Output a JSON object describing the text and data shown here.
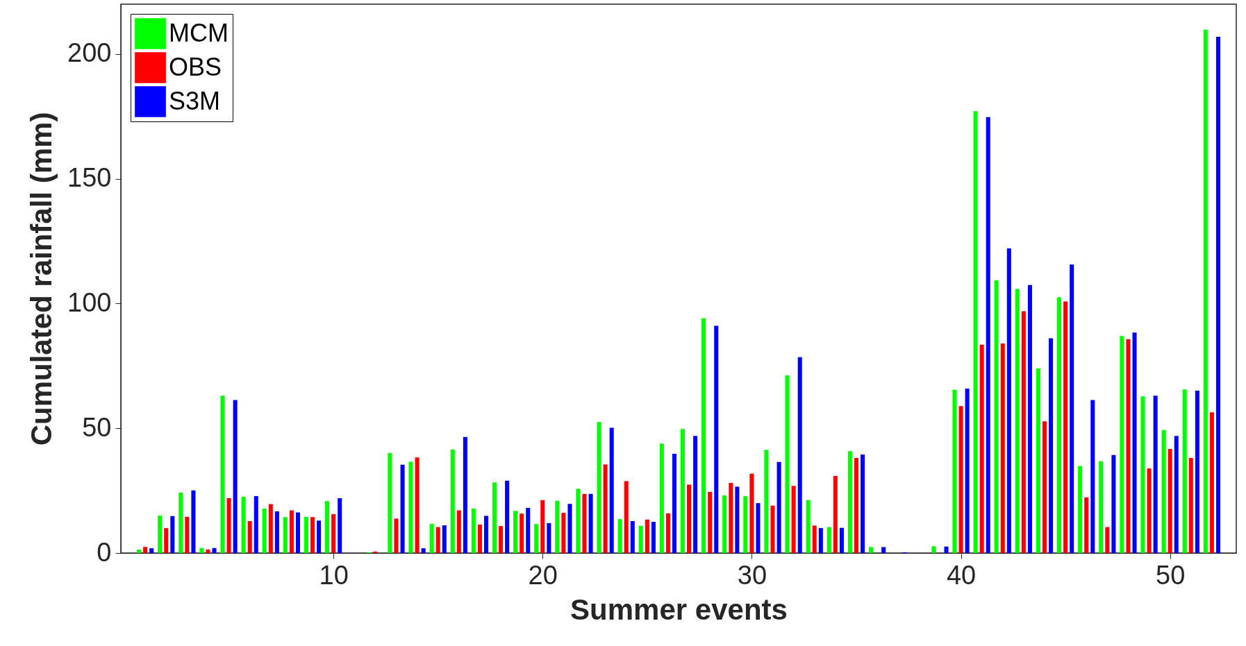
{
  "chart_data": {
    "type": "bar",
    "xlabel": "Summer events",
    "ylabel": "Cumulated rainfall (mm)",
    "x": [
      1,
      2,
      3,
      4,
      5,
      6,
      7,
      8,
      9,
      10,
      11,
      12,
      13,
      14,
      15,
      16,
      17,
      18,
      19,
      20,
      21,
      22,
      23,
      24,
      25,
      26,
      27,
      28,
      29,
      30,
      31,
      32,
      33,
      34,
      35,
      36,
      37,
      38,
      39,
      40,
      41,
      42,
      43,
      44,
      45,
      46,
      47,
      48,
      49,
      50,
      51,
      52
    ],
    "series": [
      {
        "name": "MCM",
        "color": "#00ff00",
        "values": [
          1.4,
          15,
          24.2,
          2,
          63.1,
          22.5,
          17.8,
          14.4,
          14.5,
          20.8,
          0,
          0.3,
          40.1,
          36.6,
          11.7,
          41.5,
          17.8,
          28.3,
          16.9,
          11.6,
          20.9,
          25.7,
          52.5,
          13.6,
          10.9,
          43.9,
          49.7,
          94.1,
          23.1,
          22.8,
          41.4,
          71.2,
          21.2,
          10.4,
          40.8,
          2.4,
          0,
          0,
          2.7,
          65.4,
          177.1,
          109.3,
          105.8,
          74,
          102.5,
          34.9,
          36.8,
          87,
          62.8,
          49.3,
          65.6,
          209.8
        ]
      },
      {
        "name": "OBS",
        "color": "#ff0000",
        "values": [
          2.4,
          10,
          14.5,
          1.4,
          22,
          12.8,
          19.6,
          17.1,
          14.4,
          15.6,
          0,
          0.6,
          13.8,
          38.3,
          10.4,
          17.1,
          11.4,
          10.8,
          15.8,
          21.2,
          16.1,
          23.7,
          35.5,
          28.8,
          13.4,
          15.9,
          27.4,
          24.5,
          28.1,
          31.8,
          19,
          26.9,
          11,
          30.9,
          38.1,
          0,
          0,
          0,
          0,
          58.9,
          83.5,
          84,
          96.9,
          52.8,
          100.8,
          22.3,
          10.4,
          85.7,
          33.9,
          41.7,
          38.1,
          56.4
        ]
      },
      {
        "name": "S3M",
        "color": "#0000ff",
        "values": [
          1.9,
          14.8,
          25.1,
          2,
          61.3,
          22.8,
          16.7,
          16.3,
          13,
          22,
          0,
          0,
          35.4,
          1.9,
          11.1,
          46.5,
          14.9,
          29,
          18.1,
          12,
          19.7,
          23.7,
          50.2,
          12.8,
          12.5,
          39.8,
          46.9,
          91.1,
          26.6,
          20,
          36.5,
          78.5,
          10,
          10.1,
          39.5,
          2.4,
          0.3,
          0,
          2.6,
          65.9,
          174.7,
          122.1,
          107.4,
          86.1,
          115.6,
          61.3,
          39.3,
          88.4,
          63.1,
          46.9,
          65.1,
          206.9
        ]
      }
    ],
    "xlim": [
      0,
      53
    ],
    "xticks": [
      10,
      20,
      30,
      40,
      50
    ],
    "ylim": [
      0,
      220
    ],
    "yticks": [
      0,
      50,
      100,
      150,
      200
    ],
    "legend": "top left"
  }
}
